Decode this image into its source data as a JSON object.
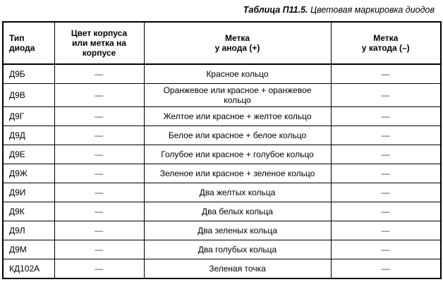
{
  "title": {
    "label": "Таблица П11.5.",
    "caption": " Цветовая маркировка диодов"
  },
  "table": {
    "headers": [
      "Тип\nдиода",
      "Цвет корпуса\nили метка на\nкорпусе",
      "Метка\nу анода (+)",
      "Метка\nу катода (–)"
    ],
    "rows": [
      {
        "type": "Д9Б",
        "body": "—",
        "anode": "Красное кольцо",
        "cathode": "—"
      },
      {
        "type": "Д9В",
        "body": "—",
        "anode": "Оранжевое или красное + оранжевое\nкольцо",
        "cathode": "—"
      },
      {
        "type": "Д9Г",
        "body": "—",
        "anode": "Желтое или красное + желтое кольцо",
        "cathode": "—"
      },
      {
        "type": "Д9Д",
        "body": "—",
        "anode": "Белое или красное + белое кольцо",
        "cathode": "—"
      },
      {
        "type": "Д9Е",
        "body": "—",
        "anode": "Голубое или красное + голубое кольцо",
        "cathode": "—"
      },
      {
        "type": "Д9Ж",
        "body": "—",
        "anode": "Зеленое или красное + зеленое кольцо",
        "cathode": "—"
      },
      {
        "type": "Д9И",
        "body": "—",
        "anode": "Два желтых кольца",
        "cathode": "—"
      },
      {
        "type": "Д9К",
        "body": "—",
        "anode": "Два белых кольца",
        "cathode": "—"
      },
      {
        "type": "Д9Л",
        "body": "—",
        "anode": "Два зеленых кольца",
        "cathode": "—"
      },
      {
        "type": "Д9М",
        "body": "—",
        "anode": "Два голубых кольца",
        "cathode": "—"
      },
      {
        "type": "КД102А",
        "body": "—",
        "anode": "Зеленая точка",
        "cathode": "—"
      }
    ]
  },
  "colors": {
    "background": "#ffffff",
    "border": "#000000",
    "text": "#000000",
    "dash": "#3c3c3c"
  }
}
